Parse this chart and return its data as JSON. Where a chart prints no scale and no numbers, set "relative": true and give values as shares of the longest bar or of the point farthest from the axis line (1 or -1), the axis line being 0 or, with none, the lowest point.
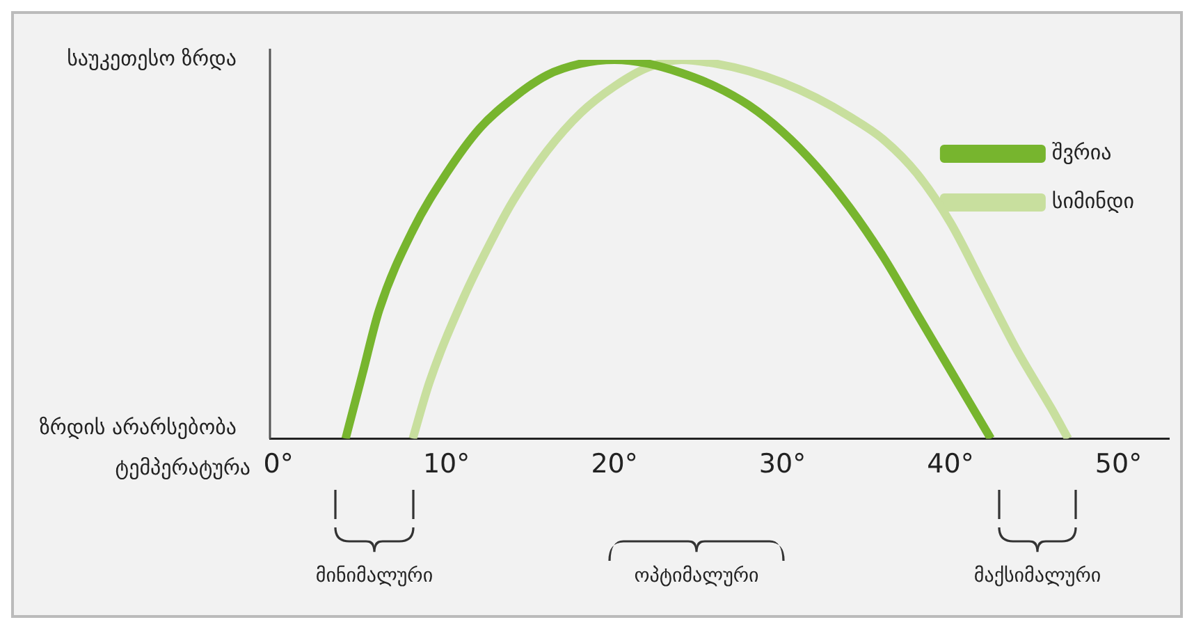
{
  "chart_data": {
    "type": "line",
    "relative": true,
    "xlabel": "ტემპერატურა",
    "series": [
      {
        "name": "შვრია",
        "color": "#77b52e",
        "x": [
          4,
          5,
          6,
          8,
          10,
          12,
          14,
          16,
          18,
          20,
          22,
          24,
          26,
          28,
          30,
          32,
          34,
          36,
          38,
          40,
          42.4
        ],
        "values": [
          0,
          0.17,
          0.34,
          0.55,
          0.7,
          0.82,
          0.9,
          0.96,
          0.99,
          1,
          0.99,
          0.965,
          0.93,
          0.88,
          0.81,
          0.72,
          0.61,
          0.48,
          0.33,
          0.18,
          0
        ]
      },
      {
        "name": "სიმინდი",
        "color": "#c8df9e",
        "x": [
          8,
          9,
          11,
          13,
          14,
          16,
          18,
          20,
          22,
          24,
          26,
          28,
          30,
          32,
          34,
          36,
          38,
          40,
          42,
          44,
          46,
          47
        ],
        "values": [
          0,
          0.15,
          0.37,
          0.55,
          0.63,
          0.76,
          0.86,
          0.93,
          0.98,
          1,
          0.99,
          0.97,
          0.94,
          0.9,
          0.85,
          0.79,
          0.7,
          0.57,
          0.4,
          0.23,
          0.08,
          0
        ]
      }
    ],
    "xlim": [
      -0.5,
      53
    ],
    "xticks": [
      {
        "value": 0,
        "label": "0°"
      },
      {
        "value": 10,
        "label": "10°"
      },
      {
        "value": 20,
        "label": "20°"
      },
      {
        "value": 30,
        "label": "30°"
      },
      {
        "value": 40,
        "label": "40°"
      },
      {
        "value": 50,
        "label": "50°"
      }
    ],
    "annotations": [
      "საუკეთესო ზრდა",
      "ზრდის არარსებობა",
      "მინიმალური",
      "ოპტიმალური",
      "მაქსიმალური"
    ],
    "grid": false,
    "legend": "top right",
    "line_style": "solid",
    "marker": "none"
  }
}
